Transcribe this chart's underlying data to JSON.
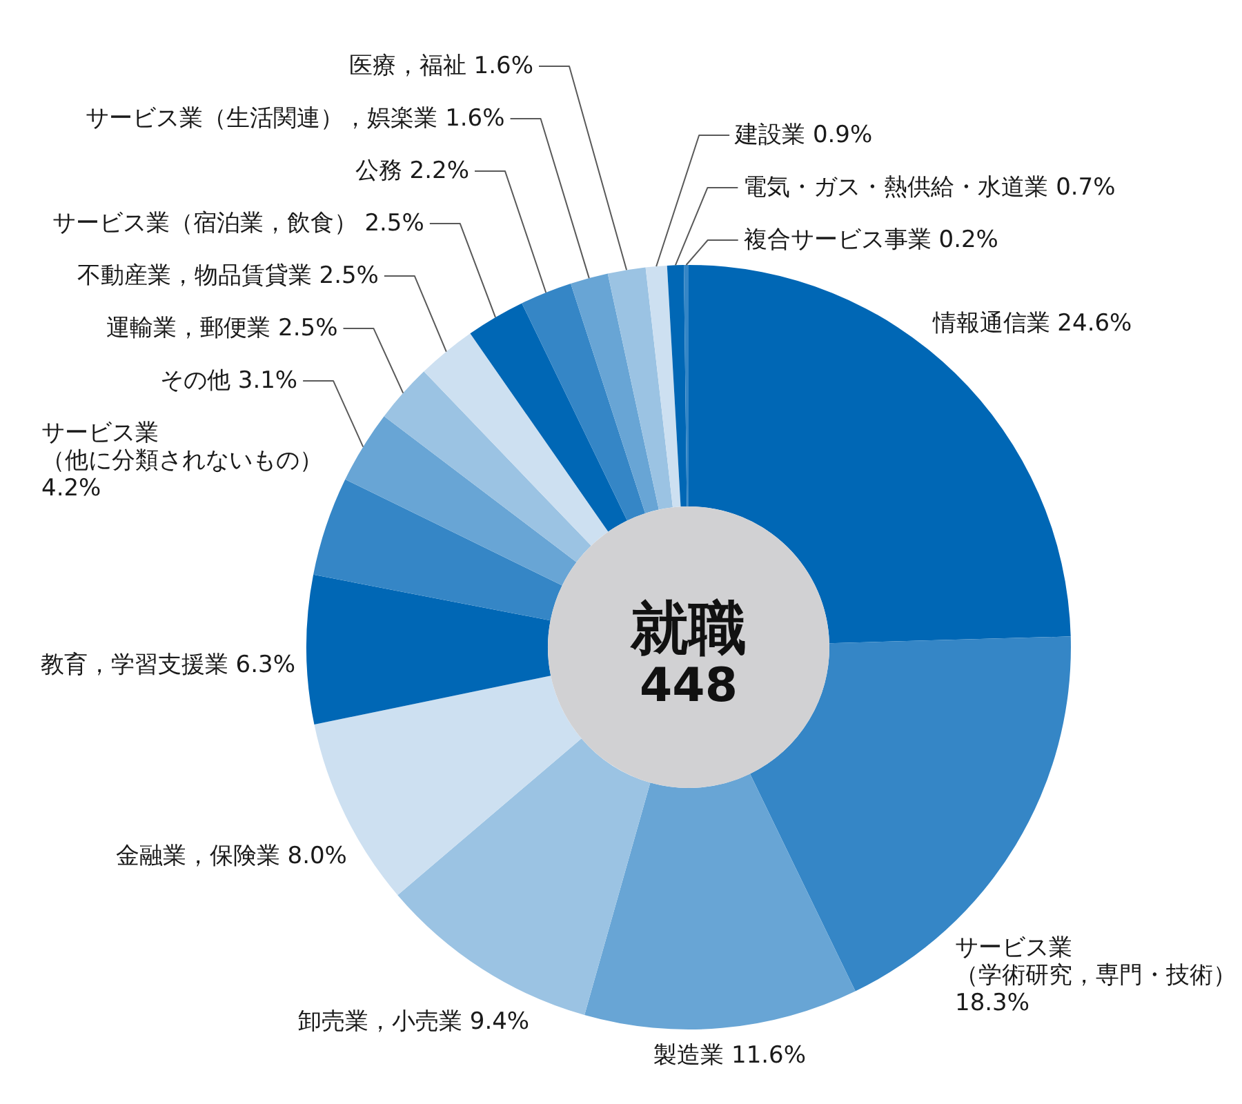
{
  "chart_data": {
    "type": "donut",
    "title": "就職",
    "subtitle": "448",
    "categories": [
      "情報通信業",
      "サービス業（学術研究，専門・技術）",
      "製造業",
      "卸売業，小売業",
      "金融業，保険業",
      "教育，学習支援業",
      "サービス業（他に分類されないもの）",
      "その他",
      "運輸業，郵便業",
      "不動産業，物品賃貸業",
      "サービス業（宿泊業，飲食）",
      "公務",
      "サービス業（生活関連），娯楽業",
      "医療，福祉",
      "建設業",
      "電気・ガス・熱供給・水道業",
      "複合サービス事業"
    ],
    "values": [
      24.6,
      18.3,
      11.6,
      9.4,
      8.0,
      6.3,
      4.2,
      3.1,
      2.5,
      2.5,
      2.5,
      2.2,
      1.6,
      1.6,
      0.9,
      0.7,
      0.2
    ],
    "value_labels": [
      "24.6%",
      "18.3%",
      "11.6%",
      "9.4%",
      "8.0%",
      "6.3%",
      "4.2%",
      "3.1%",
      "2.5%",
      "2.5%",
      "2.5%",
      "2.2%",
      "1.6%",
      "1.6%",
      "0.9%",
      "0.7%",
      "0.2%"
    ],
    "colors": [
      "#0067b5",
      "#3586c6",
      "#68a5d5",
      "#9bc3e3",
      "#cde0f1",
      "#0067b5",
      "#3586c6",
      "#68a5d5",
      "#9bc3e3",
      "#cde0f1",
      "#0067b5",
      "#3586c6",
      "#68a5d5",
      "#9bc3e3",
      "#cde0f1",
      "#0067b5",
      "#3586c6"
    ]
  }
}
